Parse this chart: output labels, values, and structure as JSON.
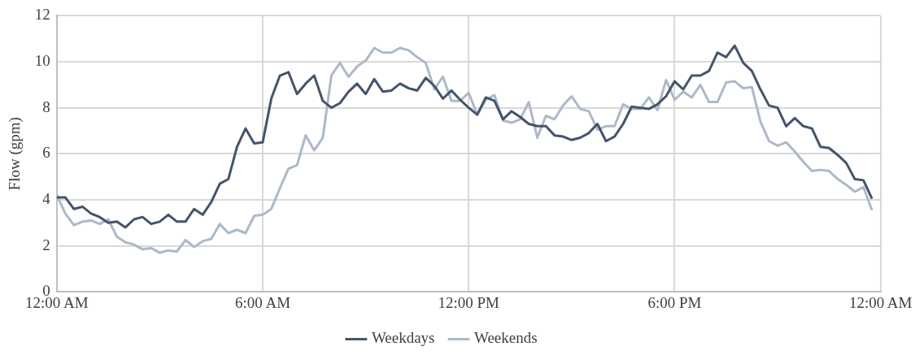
{
  "chart_data": {
    "type": "line",
    "ylabel": "Flow (gpm)",
    "x": [
      0,
      0.25,
      0.5,
      0.75,
      1,
      1.25,
      1.5,
      1.75,
      2,
      2.25,
      2.5,
      2.75,
      3,
      3.25,
      3.5,
      3.75,
      4,
      4.25,
      4.5,
      4.75,
      5,
      5.25,
      5.5,
      5.75,
      6,
      6.25,
      6.5,
      6.75,
      7,
      7.25,
      7.5,
      7.75,
      8,
      8.25,
      8.5,
      8.75,
      9,
      9.25,
      9.5,
      9.75,
      10,
      10.25,
      10.5,
      10.75,
      11,
      11.25,
      11.5,
      11.75,
      12,
      12.25,
      12.5,
      12.75,
      13,
      13.25,
      13.5,
      13.75,
      14,
      14.25,
      14.5,
      14.75,
      15,
      15.25,
      15.5,
      15.75,
      16,
      16.25,
      16.5,
      16.75,
      17,
      17.25,
      17.5,
      17.75,
      18,
      18.25,
      18.5,
      18.75,
      19,
      19.25,
      19.5,
      19.75,
      20,
      20.25,
      20.5,
      20.75,
      21,
      21.25,
      21.5,
      21.75,
      22,
      22.25,
      22.5,
      22.75,
      23,
      23.25,
      23.5,
      23.75
    ],
    "series": [
      {
        "name": "Weekdays",
        "color": "#44546a",
        "values": [
          4.1,
          4.1,
          3.6,
          3.7,
          3.4,
          3.25,
          3.0,
          3.05,
          2.8,
          3.15,
          3.25,
          2.95,
          3.05,
          3.35,
          3.05,
          3.05,
          3.6,
          3.35,
          3.9,
          4.7,
          4.9,
          6.3,
          7.1,
          6.45,
          6.5,
          8.4,
          9.4,
          9.55,
          8.6,
          9.05,
          9.4,
          8.3,
          8.0,
          8.2,
          8.7,
          9.05,
          8.6,
          9.25,
          8.7,
          8.75,
          9.05,
          8.85,
          8.75,
          9.3,
          8.95,
          8.4,
          8.75,
          8.35,
          8.0,
          7.7,
          8.45,
          8.3,
          7.5,
          7.85,
          7.6,
          7.3,
          7.2,
          7.2,
          6.8,
          6.75,
          6.6,
          6.7,
          6.9,
          7.3,
          6.55,
          6.75,
          7.3,
          8.05,
          8.0,
          7.95,
          8.15,
          8.5,
          9.15,
          8.8,
          9.4,
          9.4,
          9.6,
          10.4,
          10.2,
          10.7,
          9.95,
          9.6,
          8.8,
          8.1,
          8.0,
          7.2,
          7.55,
          7.2,
          7.1,
          6.3,
          6.25,
          5.95,
          5.6,
          4.9,
          4.85,
          4.05
        ]
      },
      {
        "name": "Weekends",
        "color": "#adb9ca",
        "values": [
          4.2,
          3.4,
          2.9,
          3.05,
          3.1,
          2.95,
          3.15,
          2.4,
          2.15,
          2.05,
          1.85,
          1.9,
          1.7,
          1.8,
          1.75,
          2.25,
          1.95,
          2.2,
          2.3,
          2.95,
          2.55,
          2.7,
          2.55,
          3.3,
          3.35,
          3.6,
          4.5,
          5.35,
          5.5,
          6.8,
          6.15,
          6.7,
          9.4,
          9.95,
          9.35,
          9.8,
          10.05,
          10.6,
          10.4,
          10.4,
          10.6,
          10.5,
          10.2,
          9.95,
          8.8,
          9.35,
          8.3,
          8.3,
          8.65,
          7.7,
          8.35,
          8.55,
          7.45,
          7.35,
          7.5,
          8.25,
          6.7,
          7.65,
          7.5,
          8.1,
          8.5,
          7.95,
          7.85,
          7.05,
          7.2,
          7.2,
          8.15,
          7.95,
          7.95,
          8.45,
          7.9,
          9.2,
          8.35,
          8.7,
          8.45,
          9.0,
          8.25,
          8.25,
          9.1,
          9.15,
          8.85,
          8.9,
          7.4,
          6.55,
          6.35,
          6.5,
          6.1,
          5.65,
          5.25,
          5.3,
          5.25,
          4.9,
          4.65,
          4.35,
          4.55,
          3.55
        ]
      }
    ],
    "xlim": [
      0,
      24
    ],
    "xticks": [
      {
        "value": 0,
        "label": "12:00 AM"
      },
      {
        "value": 6,
        "label": "6:00 AM"
      },
      {
        "value": 12,
        "label": "12:00 PM"
      },
      {
        "value": 18,
        "label": "6:00 PM"
      },
      {
        "value": 24,
        "label": "12:00 AM"
      }
    ],
    "ylim": [
      0,
      12
    ],
    "yticks": [
      0,
      2,
      4,
      6,
      8,
      10,
      12
    ],
    "grid": true,
    "legend": "bottom",
    "marker": "none",
    "line_style": "solid"
  }
}
